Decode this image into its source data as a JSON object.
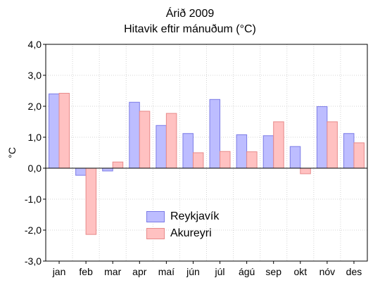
{
  "chart_data": {
    "type": "bar",
    "title": "Árið 2009",
    "subtitle": "Hitavik eftir mánuðum (°C)",
    "ylabel": "°C",
    "xlabel": "",
    "ylim": [
      -3,
      4
    ],
    "yticks": [
      "4,0",
      "3,0",
      "2,0",
      "1,0",
      "0,0",
      "-1,0",
      "-2,0",
      "-3,0"
    ],
    "categories": [
      "jan",
      "feb",
      "mar",
      "apr",
      "maí",
      "jún",
      "júl",
      "ágú",
      "sep",
      "okt",
      "nóv",
      "des"
    ],
    "grid": true,
    "legend_position": "bottom-center",
    "series": [
      {
        "name": "Reykjavík",
        "fill": "#bdbdff",
        "stroke": "#7c7ce6",
        "values": [
          2.4,
          -0.23,
          -0.09,
          2.13,
          1.38,
          1.12,
          2.22,
          1.08,
          1.05,
          0.7,
          1.99,
          1.12
        ]
      },
      {
        "name": "Akureyri",
        "fill": "#ffc1c1",
        "stroke": "#e88a8a",
        "values": [
          2.42,
          -2.14,
          0.2,
          1.84,
          1.77,
          0.5,
          0.54,
          0.53,
          1.5,
          -0.18,
          1.5,
          0.82
        ]
      }
    ]
  }
}
